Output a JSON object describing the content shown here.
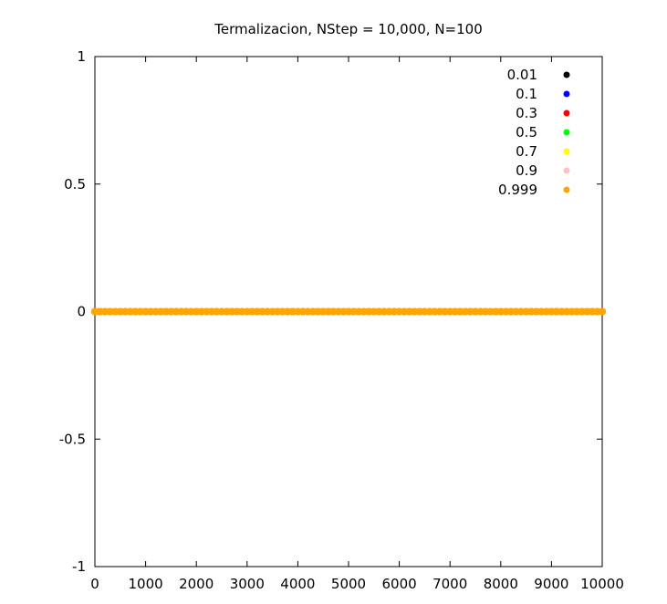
{
  "chart_data": {
    "type": "scatter",
    "title": "Termalizacion, NStep = 10,000, N=100",
    "xlabel": "",
    "ylabel": "",
    "xlim": [
      0,
      10000
    ],
    "ylim": [
      -1,
      1
    ],
    "x_ticks": [
      0,
      1000,
      2000,
      3000,
      4000,
      5000,
      6000,
      7000,
      8000,
      9000,
      10000
    ],
    "x_tick_labels": [
      "0",
      "1000",
      "2000",
      "3000",
      "4000",
      "5000",
      "6000",
      "7000",
      "8000",
      "9000",
      "10000"
    ],
    "y_ticks": [
      1,
      0.5,
      0,
      -0.5,
      -1
    ],
    "y_tick_labels": [
      "1",
      "0.5",
      "0",
      "-0.5",
      "-1"
    ],
    "grid": false,
    "legend_position": "top-right",
    "series": [
      {
        "name": "0.01",
        "color": "#000000",
        "x_range": [
          0,
          10000
        ],
        "y": 0
      },
      {
        "name": "0.1",
        "color": "#0000ff",
        "x_range": [
          0,
          10000
        ],
        "y": 0
      },
      {
        "name": "0.3",
        "color": "#ff0000",
        "x_range": [
          0,
          10000
        ],
        "y": 0
      },
      {
        "name": "0.5",
        "color": "#00ff00",
        "x_range": [
          0,
          10000
        ],
        "y": 0
      },
      {
        "name": "0.7",
        "color": "#ffff00",
        "x_range": [
          0,
          10000
        ],
        "y": 0
      },
      {
        "name": "0.9",
        "color": "#ffc0cb",
        "x_range": [
          0,
          10000
        ],
        "y": 0
      },
      {
        "name": "0.999",
        "color": "#ffa500",
        "x_range": [
          0,
          10000
        ],
        "y": 0
      }
    ]
  }
}
